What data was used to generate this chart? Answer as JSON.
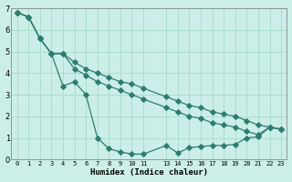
{
  "bg_color": "#cceee8",
  "grid_color": "#aaddcc",
  "line_color": "#2d7d6e",
  "xlim": [
    -0.5,
    23.5
  ],
  "ylim": [
    0,
    7
  ],
  "xticks": [
    0,
    1,
    2,
    3,
    4,
    5,
    6,
    7,
    8,
    9,
    10,
    11,
    13,
    14,
    15,
    16,
    17,
    18,
    19,
    20,
    21,
    22,
    23
  ],
  "xtick_labels": [
    "0",
    "1",
    "2",
    "3",
    "4",
    "5",
    "6",
    "7",
    "8",
    "9",
    "10",
    "11",
    "13",
    "14",
    "15",
    "16",
    "17",
    "18",
    "19",
    "20",
    "21",
    "22",
    "23"
  ],
  "yticks": [
    0,
    1,
    2,
    3,
    4,
    5,
    6,
    7
  ],
  "xlabel": "Humidex (Indice chaleur)",
  "line1_x": [
    0,
    1,
    2,
    3,
    4,
    5,
    6,
    7,
    8,
    9,
    10,
    11,
    13,
    14,
    15,
    16,
    17,
    18,
    19,
    20,
    21,
    22,
    23
  ],
  "line1_y": [
    6.8,
    6.6,
    5.6,
    4.9,
    3.4,
    3.6,
    3.0,
    1.0,
    0.5,
    0.35,
    0.25,
    0.25,
    0.65,
    0.3,
    0.55,
    0.6,
    0.65,
    0.65,
    0.7,
    1.0,
    1.05,
    1.5,
    1.4
  ],
  "line2_x": [
    0,
    1,
    2,
    3,
    4,
    5,
    6,
    7,
    8,
    9,
    10,
    11,
    13,
    14,
    15,
    16,
    17,
    18,
    19,
    20,
    21,
    22,
    23
  ],
  "line2_y": [
    6.8,
    6.6,
    5.6,
    4.9,
    4.9,
    4.2,
    3.9,
    3.6,
    3.4,
    3.2,
    3.0,
    2.8,
    2.4,
    2.2,
    2.0,
    1.9,
    1.7,
    1.6,
    1.5,
    1.3,
    1.15,
    1.5,
    1.4
  ],
  "line3_x": [
    0,
    1,
    2,
    3,
    4,
    5,
    6,
    7,
    8,
    9,
    10,
    11,
    13,
    14,
    15,
    16,
    17,
    18,
    19,
    20,
    21,
    22,
    23
  ],
  "line3_y": [
    6.8,
    6.6,
    5.6,
    4.9,
    4.9,
    4.5,
    4.2,
    4.0,
    3.8,
    3.6,
    3.5,
    3.3,
    2.9,
    2.7,
    2.5,
    2.4,
    2.2,
    2.1,
    2.0,
    1.8,
    1.6,
    1.5,
    1.4
  ]
}
